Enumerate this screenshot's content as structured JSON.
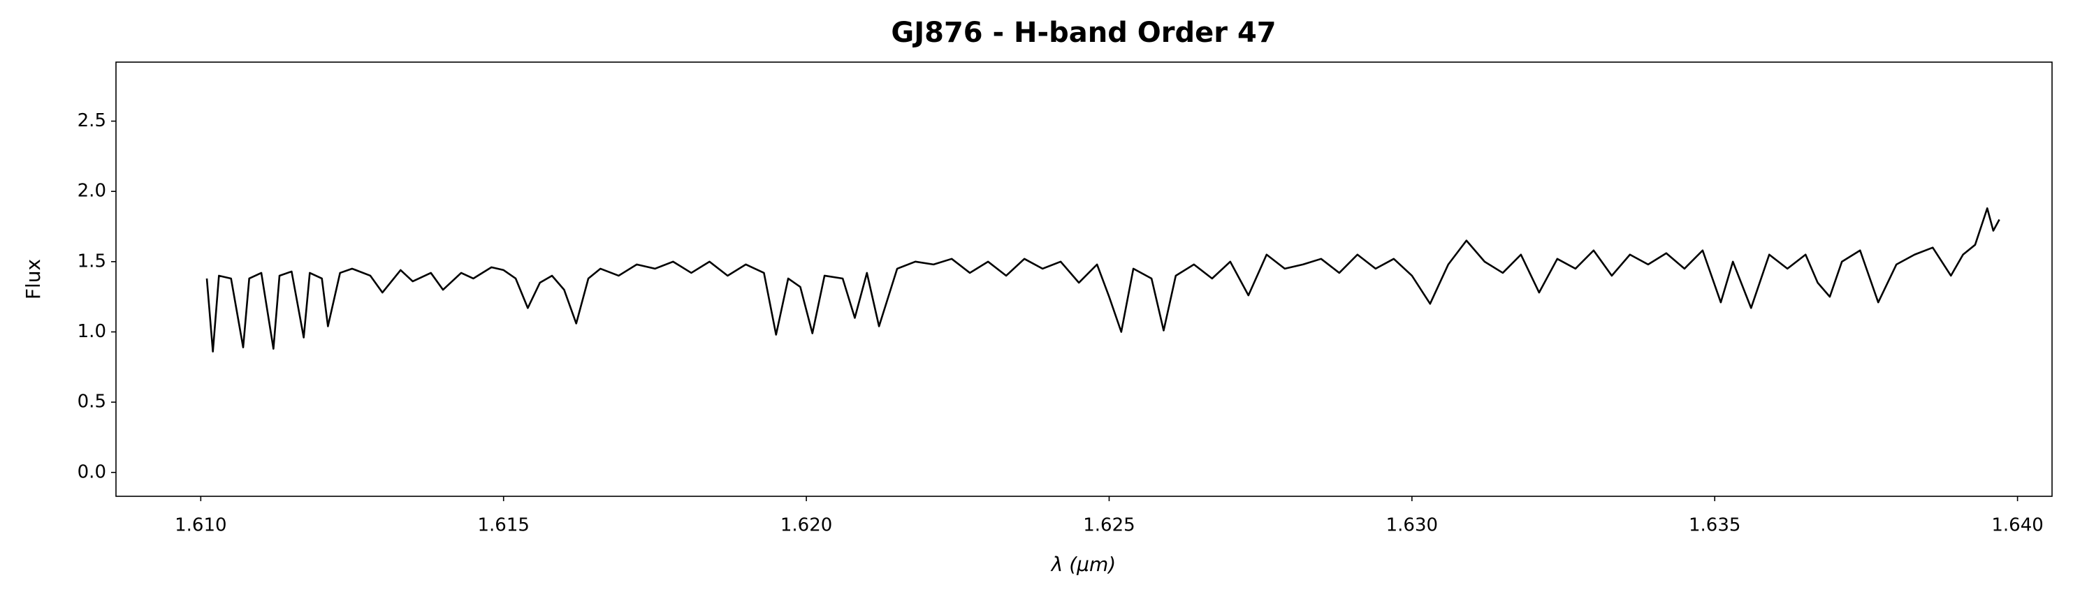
{
  "chart_data": {
    "type": "line",
    "title": "GJ876 - H-band Order 47",
    "x_label": "λ (μm)",
    "y_label": "Flux",
    "xlim": [
      1.6086,
      1.64057
    ],
    "ylim": [
      -0.17,
      2.92
    ],
    "xticks": [
      {
        "value": 1.61,
        "label": "1.610"
      },
      {
        "value": 1.615,
        "label": "1.615"
      },
      {
        "value": 1.62,
        "label": "1.620"
      },
      {
        "value": 1.625,
        "label": "1.625"
      },
      {
        "value": 1.63,
        "label": "1.630"
      },
      {
        "value": 1.635,
        "label": "1.635"
      },
      {
        "value": 1.64,
        "label": "1.640"
      }
    ],
    "yticks": [
      {
        "value": 0,
        "label": "0.0"
      },
      0.5,
      {
        "value": 1,
        "label": "1.0"
      },
      1.5,
      {
        "value": 2,
        "label": "2.0"
      },
      2.5
    ],
    "grid": false,
    "series": [
      {
        "color": "#000000",
        "x": [
          1.6101,
          1.6102,
          1.6103,
          1.6105,
          1.6107,
          1.6108,
          1.611,
          1.6112,
          1.6113,
          1.6115,
          1.6117,
          1.6118,
          1.612,
          1.6121,
          1.6123,
          1.6125,
          1.6128,
          1.613,
          1.6133,
          1.6135,
          1.6138,
          1.614,
          1.6143,
          1.6145,
          1.6148,
          1.615,
          1.6152,
          1.6154,
          1.6156,
          1.6158,
          1.616,
          1.6162,
          1.6164,
          1.6166,
          1.6169,
          1.6172,
          1.6175,
          1.6178,
          1.6181,
          1.6184,
          1.6187,
          1.619,
          1.6193,
          1.6195,
          1.6197,
          1.6199,
          1.6201,
          1.6203,
          1.6206,
          1.6208,
          1.621,
          1.6212,
          1.6215,
          1.6218,
          1.6221,
          1.6224,
          1.6227,
          1.623,
          1.6233,
          1.6236,
          1.6239,
          1.6242,
          1.6245,
          1.6248,
          1.625,
          1.6252,
          1.6254,
          1.6257,
          1.6259,
          1.6261,
          1.6264,
          1.6267,
          1.627,
          1.6273,
          1.6276,
          1.6279,
          1.6282,
          1.6285,
          1.6288,
          1.6291,
          1.6294,
          1.6297,
          1.63,
          1.6303,
          1.6306,
          1.6309,
          1.6312,
          1.6315,
          1.6318,
          1.6321,
          1.6324,
          1.6327,
          1.633,
          1.6333,
          1.6336,
          1.6339,
          1.6342,
          1.6345,
          1.6348,
          1.6351,
          1.6353,
          1.6356,
          1.6359,
          1.6362,
          1.6365,
          1.6367,
          1.6369,
          1.6371,
          1.6374,
          1.6377,
          1.638,
          1.6383,
          1.6386,
          1.6389,
          1.6391,
          1.6393,
          1.6395,
          1.6396,
          1.6397
        ],
        "values": [
          1.38,
          0.86,
          1.4,
          1.38,
          0.89,
          1.38,
          1.42,
          0.88,
          1.4,
          1.43,
          0.96,
          1.42,
          1.38,
          1.04,
          1.42,
          1.45,
          1.4,
          1.28,
          1.44,
          1.36,
          1.42,
          1.3,
          1.42,
          1.38,
          1.46,
          1.44,
          1.38,
          1.17,
          1.35,
          1.4,
          1.3,
          1.06,
          1.38,
          1.45,
          1.4,
          1.48,
          1.45,
          1.5,
          1.42,
          1.5,
          1.4,
          1.48,
          1.42,
          0.98,
          1.38,
          1.32,
          0.99,
          1.4,
          1.38,
          1.1,
          1.42,
          1.04,
          1.45,
          1.5,
          1.48,
          1.52,
          1.42,
          1.5,
          1.4,
          1.52,
          1.45,
          1.5,
          1.35,
          1.48,
          1.25,
          1.0,
          1.45,
          1.38,
          1.01,
          1.4,
          1.48,
          1.38,
          1.5,
          1.26,
          1.55,
          1.45,
          1.48,
          1.52,
          1.42,
          1.55,
          1.45,
          1.52,
          1.4,
          1.2,
          1.48,
          1.65,
          1.5,
          1.42,
          1.55,
          1.28,
          1.52,
          1.45,
          1.58,
          1.4,
          1.55,
          1.48,
          1.56,
          1.45,
          1.58,
          1.21,
          1.5,
          1.17,
          1.55,
          1.45,
          1.55,
          1.35,
          1.25,
          1.5,
          1.58,
          1.21,
          1.48,
          1.55,
          1.6,
          1.4,
          1.55,
          1.62,
          1.88,
          1.72,
          1.8
        ]
      }
    ]
  }
}
